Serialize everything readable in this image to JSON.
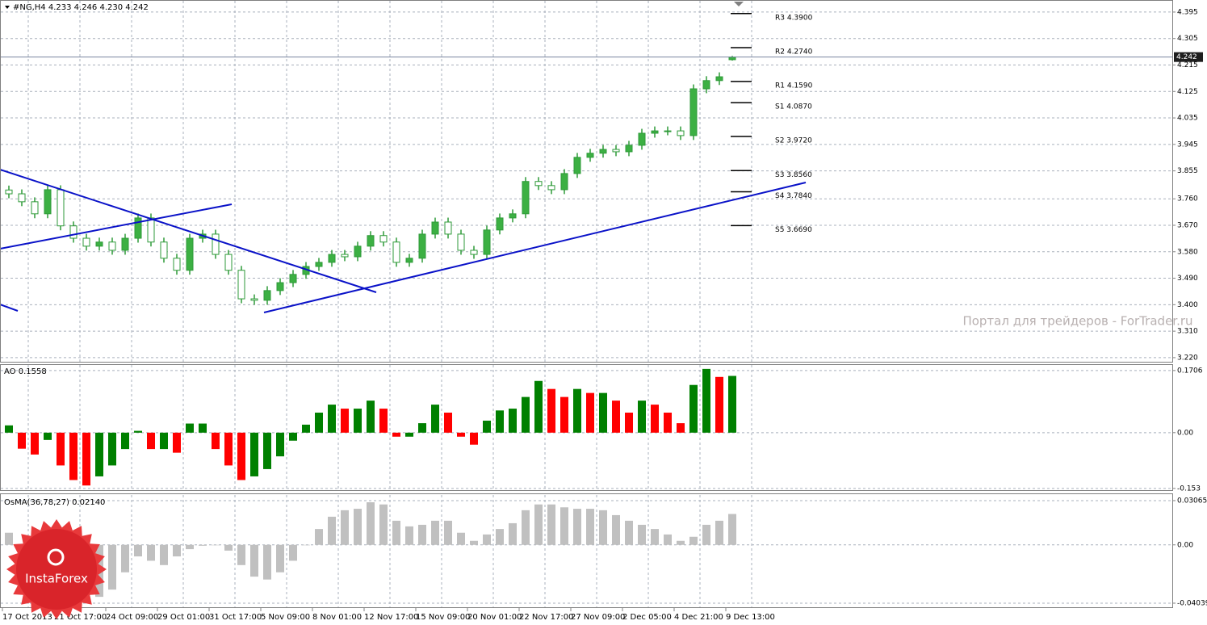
{
  "chart_data": [
    {
      "type": "candlestick",
      "title": "#NG,H4  4.233 4.246 4.230 4.242",
      "categories": [
        "17 Oct 2013",
        null,
        null,
        null,
        "21 Oct 17:00",
        null,
        null,
        null,
        "24 Oct 09:00",
        null,
        null,
        null,
        "29 Oct 01:00",
        null,
        null,
        null,
        "31 Oct 17:00",
        null,
        null,
        null,
        "5 Nov 09:00",
        null,
        null,
        null,
        "8 Nov 01:00",
        null,
        null,
        null,
        "12 Nov 17:00",
        null,
        null,
        null,
        "15 Nov 09:00",
        null,
        null,
        null,
        "20 Nov 01:00",
        null,
        null,
        null,
        "22 Nov 17:00",
        null,
        null,
        null,
        "27 Nov 09:00",
        null,
        null,
        null,
        "2 Dec 05:00",
        null,
        null,
        null,
        "4 Dec 21:00",
        null,
        null,
        null,
        "9 Dec 13:00"
      ],
      "open": [
        3.79,
        3.777,
        3.75,
        3.709,
        3.791,
        3.668,
        3.626,
        3.599,
        3.613,
        3.585,
        3.626,
        3.695,
        3.613,
        3.558,
        3.517,
        3.626,
        3.64,
        3.571,
        3.517,
        3.42,
        3.415,
        3.448,
        3.475,
        3.503,
        3.53,
        3.544,
        3.571,
        3.563,
        3.599,
        3.635,
        3.613,
        3.544,
        3.558,
        3.64,
        3.681,
        3.64,
        3.585,
        3.571,
        3.654,
        3.695,
        3.709,
        3.819,
        3.805,
        3.791,
        3.846,
        3.901,
        3.915,
        3.928,
        3.92,
        3.942,
        3.983,
        3.991,
        3.991,
        3.975,
        4.134,
        4.162,
        4.233
      ],
      "high": [
        3.805,
        3.792,
        3.765,
        3.806,
        3.806,
        3.683,
        3.641,
        3.628,
        3.628,
        3.641,
        3.71,
        3.71,
        3.628,
        3.573,
        3.641,
        3.655,
        3.655,
        3.586,
        3.532,
        3.435,
        3.463,
        3.49,
        3.518,
        3.545,
        3.559,
        3.586,
        3.586,
        3.614,
        3.65,
        3.65,
        3.628,
        3.573,
        3.655,
        3.696,
        3.696,
        3.655,
        3.6,
        3.669,
        3.71,
        3.724,
        3.834,
        3.834,
        3.82,
        3.861,
        3.916,
        3.93,
        3.943,
        3.943,
        3.957,
        3.998,
        4.006,
        4.006,
        4.006,
        4.149,
        4.177,
        4.19,
        4.246
      ],
      "low": [
        3.762,
        3.735,
        3.694,
        3.694,
        3.653,
        3.611,
        3.584,
        3.584,
        3.57,
        3.57,
        3.611,
        3.598,
        3.543,
        3.502,
        3.502,
        3.611,
        3.556,
        3.502,
        3.405,
        3.4,
        3.4,
        3.433,
        3.46,
        3.488,
        3.515,
        3.529,
        3.548,
        3.548,
        3.584,
        3.598,
        3.529,
        3.529,
        3.543,
        3.625,
        3.625,
        3.57,
        3.556,
        3.556,
        3.639,
        3.68,
        3.694,
        3.79,
        3.776,
        3.776,
        3.831,
        3.886,
        3.9,
        3.905,
        3.905,
        3.927,
        3.968,
        3.976,
        3.96,
        3.96,
        4.119,
        4.147,
        4.23
      ],
      "close": [
        3.777,
        3.75,
        3.709,
        3.791,
        3.668,
        3.626,
        3.599,
        3.613,
        3.585,
        3.626,
        3.695,
        3.613,
        3.558,
        3.517,
        3.626,
        3.64,
        3.571,
        3.517,
        3.42,
        3.415,
        3.448,
        3.475,
        3.503,
        3.53,
        3.544,
        3.571,
        3.563,
        3.599,
        3.635,
        3.613,
        3.544,
        3.558,
        3.64,
        3.681,
        3.64,
        3.585,
        3.571,
        3.654,
        3.695,
        3.709,
        3.819,
        3.805,
        3.791,
        3.846,
        3.901,
        3.915,
        3.928,
        3.92,
        3.942,
        3.983,
        3.991,
        3.991,
        3.975,
        4.134,
        4.162,
        4.175,
        4.242
      ],
      "up_color": "#3cb043",
      "down_color": "#ffffff",
      "wick_color": "#2e9a38",
      "ylim": [
        3.206,
        4.436
      ],
      "yticks": [
        4.395,
        4.305,
        4.215,
        4.125,
        4.035,
        3.945,
        3.855,
        {
          "value": 3.76,
          "label": "3.760"
        },
        {
          "value": 3.67,
          "label": "3.670"
        },
        {
          "value": 3.58,
          "label": "3.580"
        },
        {
          "value": 3.49,
          "label": "3.490"
        },
        {
          "value": 3.4,
          "label": "3.400"
        },
        {
          "value": 3.31,
          "label": "3.310"
        },
        {
          "value": 3.22,
          "label": "3.220"
        }
      ],
      "grid": true,
      "last_price": 4.242,
      "pivots": [
        {
          "label": "R3 4.3900",
          "value": 4.39
        },
        {
          "label": "R2 4.2740",
          "value": 4.274
        },
        {
          "label": "R1 4.1590",
          "value": 4.159
        },
        {
          "label": "S1 4.0870",
          "value": 4.087
        },
        {
          "label": "S2 3.9720",
          "value": 3.972
        },
        {
          "label": "S3 3.8560",
          "value": 3.856
        },
        {
          "label": "S4 3.7840",
          "value": 3.784
        },
        {
          "label": "S5 3.6690",
          "value": 3.669
        }
      ],
      "annotation": "Портал для трейдеров - ForTrader.ru"
    },
    {
      "type": "bar",
      "title": "AO 0.1558",
      "values": [
        0.02,
        -0.044,
        -0.06,
        -0.02,
        -0.09,
        -0.13,
        -0.145,
        -0.12,
        -0.09,
        -0.045,
        0.005,
        -0.045,
        -0.045,
        -0.055,
        0.025,
        0.025,
        -0.045,
        -0.09,
        -0.13,
        -0.12,
        -0.1,
        -0.065,
        -0.022,
        0.022,
        0.055,
        0.077,
        0.066,
        0.066,
        0.088,
        0.066,
        -0.011,
        -0.011,
        0.026,
        0.077,
        0.055,
        -0.011,
        -0.033,
        0.033,
        0.061,
        0.066,
        0.098,
        0.142,
        0.12,
        0.098,
        0.12,
        0.109,
        0.109,
        0.088,
        0.055,
        0.088,
        0.077,
        0.055,
        0.026,
        0.131,
        0.175,
        0.153,
        0.1558
      ],
      "up_color": "#008000",
      "down_color": "#ff0000",
      "ylim": [
        -0.16,
        0.188
      ],
      "yticks": [
        0.1706,
        {
          "value": 0,
          "label": "0.00"
        },
        -0.153
      ],
      "grid": true
    },
    {
      "type": "bar",
      "title": "OsMA(36,78,27) 0.02140",
      "values": [
        0.0084,
        -0.003,
        -0.008,
        -0.008,
        -0.014,
        -0.025,
        -0.033,
        -0.036,
        -0.031,
        -0.019,
        -0.008,
        -0.011,
        -0.014,
        -0.008,
        -0.003,
        -0.0006,
        0,
        -0.004,
        -0.014,
        -0.022,
        -0.024,
        -0.019,
        -0.011,
        0,
        0.011,
        0.0195,
        0.024,
        0.025,
        0.0295,
        0.028,
        0.0167,
        0.0128,
        0.0139,
        0.0167,
        0.0167,
        0.0084,
        0.0028,
        0.0072,
        0.011,
        0.015,
        0.024,
        0.028,
        0.028,
        0.026,
        0.025,
        0.025,
        0.024,
        0.0206,
        0.0167,
        0.0139,
        0.011,
        0.0072,
        0.0028,
        0.0056,
        0.0139,
        0.0167,
        0.0214
      ],
      "color": "#c0c0c0",
      "ylim": [
        -0.0432,
        0.0351
      ],
      "yticks": [
        0.03065,
        {
          "value": 0,
          "label": "0.00"
        },
        -0.04039
      ],
      "grid": true
    }
  ],
  "branding": {
    "logo": "InstaForex"
  }
}
